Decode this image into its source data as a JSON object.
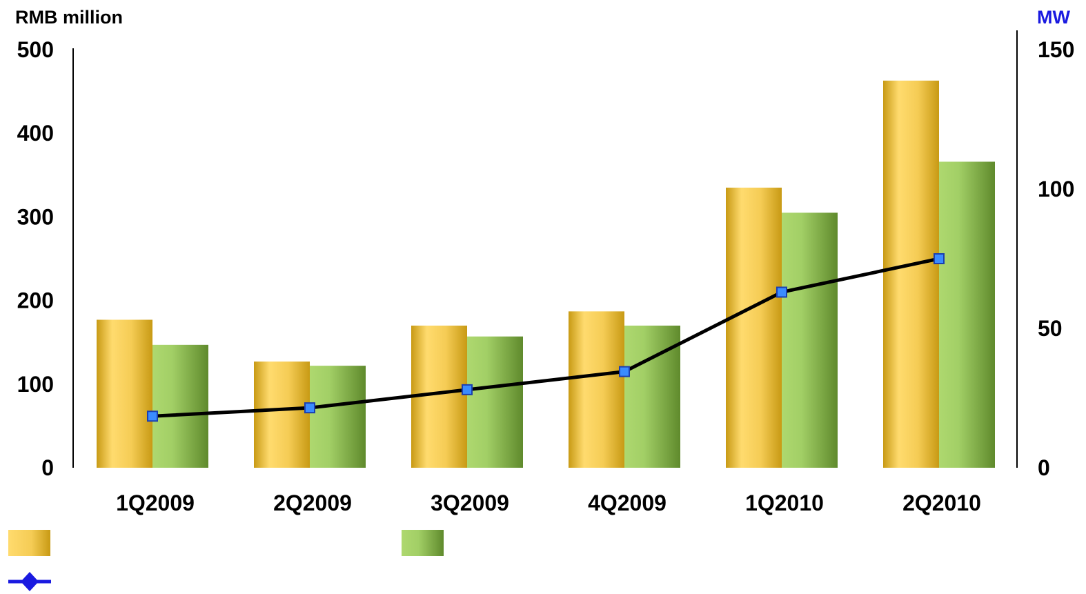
{
  "colors": {
    "series_a_light": "#ffdb6e",
    "series_a_dark": "#c89a14",
    "series_b_light": "#aed86f",
    "series_b_dark": "#5f8a2c",
    "line": "#000000",
    "marker_fill": "#3a8cff",
    "marker_stroke": "#1b3fb0",
    "right_axis_title": "#1a1ae0"
  },
  "chart_data": {
    "type": "bar",
    "categories": [
      "1Q2009",
      "2Q2009",
      "3Q2009",
      "4Q2009",
      "1Q2010",
      "2Q2010"
    ],
    "series": [
      {
        "values": [
          177,
          127,
          170,
          187,
          335,
          463
        ],
        "axis": "left",
        "mark": "bar"
      },
      {
        "values": [
          147,
          122,
          157,
          170,
          305,
          366
        ],
        "axis": "left",
        "mark": "bar"
      },
      {
        "values": [
          18.5,
          21.5,
          28,
          34.5,
          63,
          75
        ],
        "axis": "right",
        "mark": "line"
      }
    ],
    "y_left": {
      "label": "RMB million",
      "ticks": [
        0,
        100,
        200,
        300,
        400,
        500
      ],
      "lim": [
        0,
        500
      ]
    },
    "y_right": {
      "label": "MW",
      "ticks": [
        0,
        50,
        100,
        150
      ],
      "lim": [
        0,
        150
      ]
    },
    "grid": false,
    "legend_position": "bottom-left"
  },
  "legend": {
    "items": [
      {
        "icon": "gold-bar-swatch",
        "label": ""
      },
      {
        "icon": "green-bar-swatch",
        "label": ""
      },
      {
        "icon": "blue-diamond-line-marker",
        "label": ""
      }
    ]
  }
}
